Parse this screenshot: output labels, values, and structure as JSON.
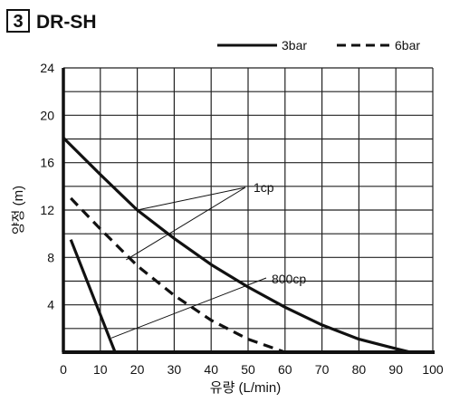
{
  "header": {
    "number": "3",
    "title": "DR-SH"
  },
  "chart_data": {
    "type": "line",
    "xlabel": "유량 (L/min)",
    "ylabel": "양정 (m)",
    "xlim": [
      0,
      100
    ],
    "ylim": [
      0,
      24
    ],
    "x_ticks": [
      "0",
      "10",
      "20",
      "30",
      "40",
      "50",
      "60",
      "70",
      "80",
      "90",
      "100"
    ],
    "y_ticks": [
      "4",
      "8",
      "12",
      "16",
      "20",
      "24"
    ],
    "grid": true,
    "legend_position": "top-right",
    "legend": [
      {
        "label": "3bar",
        "style": "solid"
      },
      {
        "label": "6bar",
        "style": "dashed"
      }
    ],
    "series": [
      {
        "name": "3bar",
        "style": "solid",
        "fluid": "1cp",
        "x": [
          0,
          10,
          20,
          30,
          40,
          50,
          60,
          70,
          80,
          90,
          94
        ],
        "y": [
          18.1,
          15.0,
          12.0,
          9.6,
          7.4,
          5.5,
          3.8,
          2.3,
          1.1,
          0.3,
          0
        ]
      },
      {
        "name": "6bar",
        "style": "dashed",
        "fluid": "1cp",
        "x": [
          2,
          10,
          20,
          30,
          40,
          50,
          60
        ],
        "y": [
          13.0,
          10.4,
          7.3,
          4.8,
          2.7,
          1.1,
          0
        ]
      },
      {
        "name": "3bar",
        "style": "solid",
        "fluid": "800cp",
        "x": [
          2,
          14
        ],
        "y": [
          9.5,
          0
        ]
      }
    ],
    "annotations": [
      {
        "text": "1cp",
        "targets": [
          {
            "x": 20,
            "y": 12.0
          },
          {
            "x": 17,
            "y": 7.8
          }
        ]
      },
      {
        "text": "800cp",
        "targets": [
          {
            "x": 13,
            "y": 1.2
          }
        ]
      }
    ]
  }
}
